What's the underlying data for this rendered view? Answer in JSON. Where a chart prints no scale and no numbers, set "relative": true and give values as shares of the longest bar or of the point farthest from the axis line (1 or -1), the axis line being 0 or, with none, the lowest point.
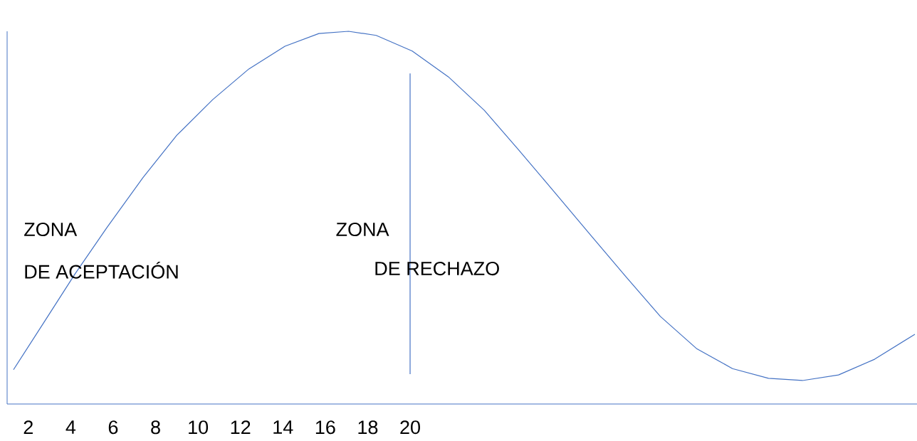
{
  "chart_data": {
    "type": "line",
    "relative": true,
    "color": "#4472c4",
    "x": [
      1.3,
      2.7,
      4.2,
      5.7,
      7.4,
      9.0,
      10.7,
      12.4,
      14.1,
      15.7,
      17.1,
      18.4,
      20.1,
      21.8,
      23.5,
      25.1,
      26.8,
      28.5,
      30.2,
      31.8,
      33.5,
      35.2,
      36.9,
      38.5,
      40.2,
      41.9,
      43.8
    ],
    "values": [
      0.092,
      0.216,
      0.349,
      0.473,
      0.607,
      0.721,
      0.817,
      0.899,
      0.96,
      0.994,
      1,
      0.989,
      0.947,
      0.878,
      0.788,
      0.683,
      0.569,
      0.454,
      0.34,
      0.235,
      0.149,
      0.095,
      0.069,
      0.063,
      0.078,
      0.12,
      0.187
    ],
    "xlim": [
      1,
      43.9
    ],
    "xticks": [
      2,
      4,
      6,
      8,
      10,
      12,
      14,
      16,
      18,
      20
    ],
    "ref_lines": [
      {
        "axis": "x",
        "value": 20,
        "color": "#4472c4"
      }
    ],
    "annotations": [
      "ZONA",
      "DE ACEPTACIÓN",
      "ZONA",
      "DE RECHAZO"
    ],
    "marker": "none",
    "line_style": "solid"
  }
}
